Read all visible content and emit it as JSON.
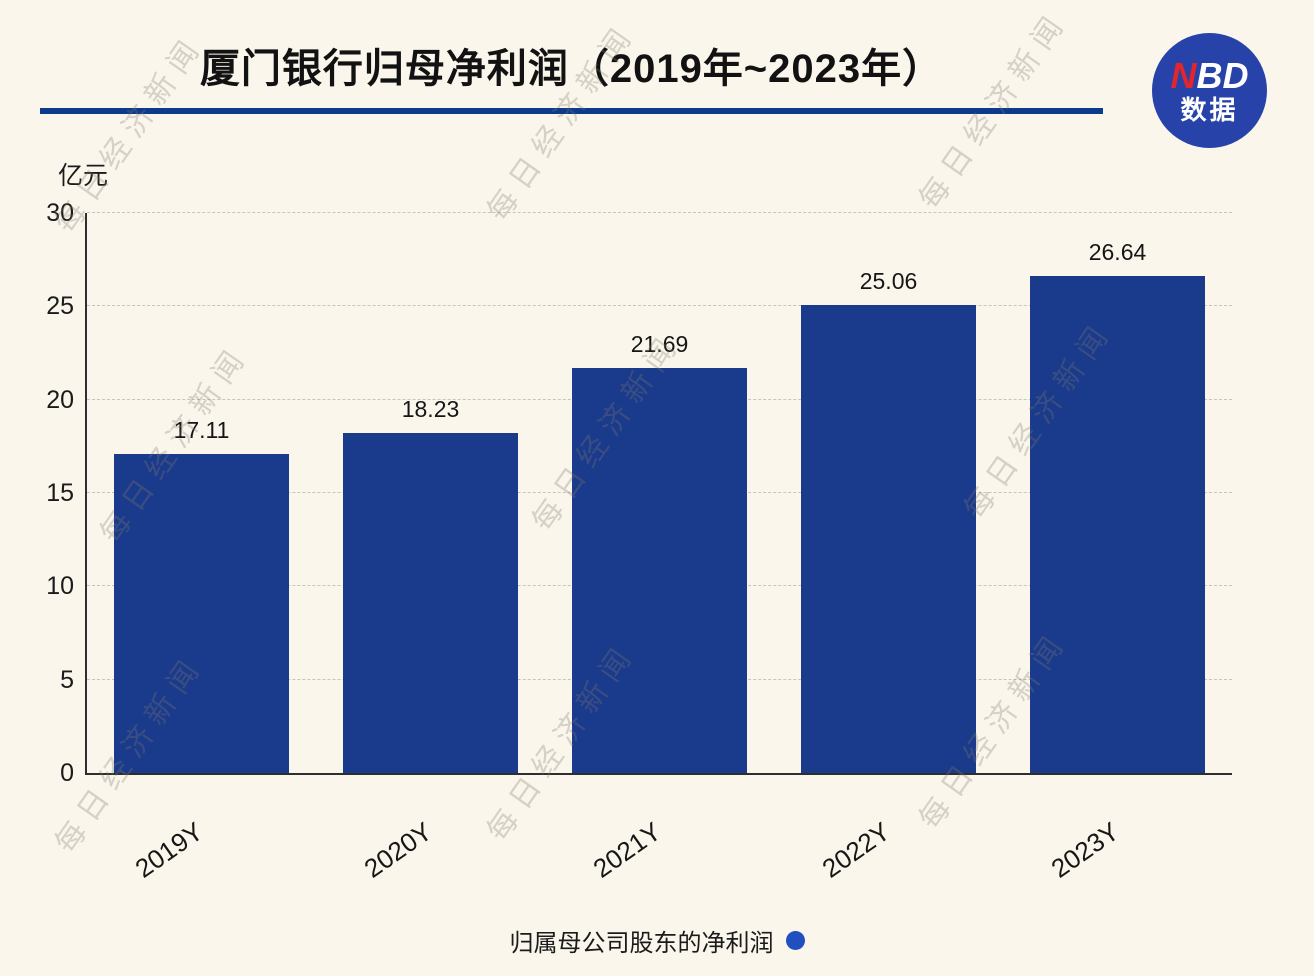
{
  "header": {
    "title": "厦门银行归母净利润（2019年~2023年）"
  },
  "logo": {
    "red_part": "N",
    "white_part": "BD",
    "subtitle": "数据"
  },
  "watermark": {
    "text": "每日经济新闻"
  },
  "chart_data": {
    "type": "bar",
    "title": "厦门银行归母净利润（2019年~2023年）",
    "categories": [
      "2019Y",
      "2020Y",
      "2021Y",
      "2022Y",
      "2023Y"
    ],
    "values": [
      17.11,
      18.23,
      21.69,
      25.06,
      26.64
    ],
    "xlabel": "",
    "ylabel": "亿元",
    "ylim": [
      0,
      30
    ],
    "yticks": [
      0,
      5,
      10,
      15,
      20,
      25,
      30
    ],
    "grid": "horizontal-dashed",
    "legend": {
      "label": "归属母公司股东的净利润",
      "position": "bottom"
    }
  },
  "colors": {
    "background": "#FAF6EC",
    "bar": "#1A3A8C",
    "underline": "#0D3A8A",
    "logo_bg": "#2742A8",
    "logo_n": "#E3262C",
    "legend_dot": "#2050C0"
  }
}
